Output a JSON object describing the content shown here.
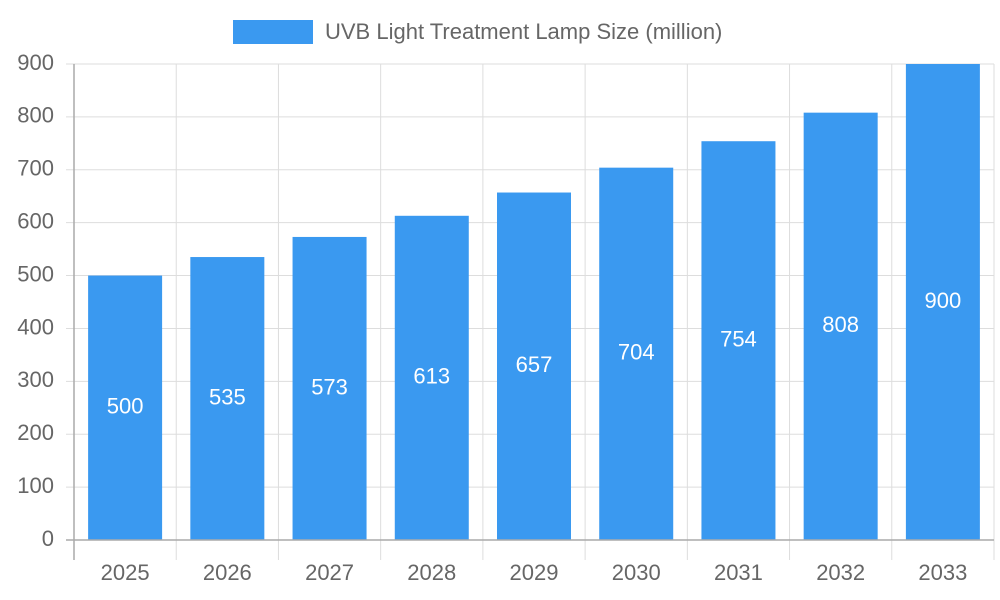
{
  "chart_data": {
    "type": "bar",
    "categories": [
      "2025",
      "2026",
      "2027",
      "2028",
      "2029",
      "2030",
      "2031",
      "2032",
      "2033"
    ],
    "series": [
      {
        "name": "UVB Light Treatment Lamp Size (million)",
        "color": "#3a99f0",
        "values": [
          500,
          535,
          573,
          613,
          657,
          704,
          754,
          808,
          900
        ]
      }
    ],
    "ylim": [
      0,
      900
    ],
    "yticks": [
      0,
      100,
      200,
      300,
      400,
      500,
      600,
      700,
      800,
      900
    ],
    "grid": true,
    "legend": "top",
    "data_labels": true
  }
}
